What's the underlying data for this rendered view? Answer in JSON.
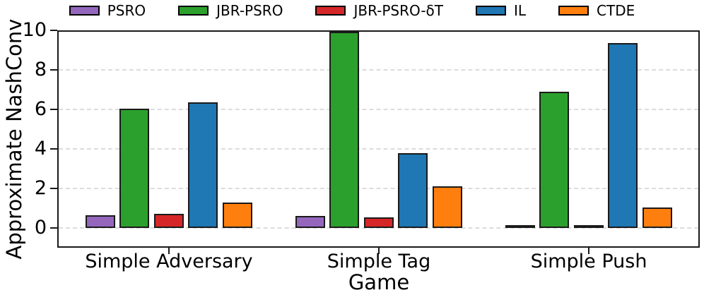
{
  "legend": {
    "items": [
      {
        "label": "PSRO",
        "color": "#9467bd"
      },
      {
        "label": "JBR-PSRO",
        "color": "#2ca02c"
      },
      {
        "label": "JBR-PSRO-δT",
        "color": "#d62728"
      },
      {
        "label": "IL",
        "color": "#1f77b4"
      },
      {
        "label": "CTDE",
        "color": "#ff7f0e"
      }
    ]
  },
  "chart_data": {
    "type": "bar",
    "title": "",
    "xlabel": "Game",
    "ylabel": "Approximate NashConv",
    "categories": [
      "Simple Adversary",
      "Simple Tag",
      "Simple Push"
    ],
    "series": [
      {
        "name": "PSRO",
        "color": "#9467bd",
        "values": [
          0.65,
          0.6,
          0.1
        ]
      },
      {
        "name": "JBR-PSRO",
        "color": "#2ca02c",
        "values": [
          6.05,
          10,
          6.9
        ]
      },
      {
        "name": "JBR-PSRO-δT",
        "color": "#d62728",
        "values": [
          0.72,
          0.52,
          0.16
        ]
      },
      {
        "name": "IL",
        "color": "#1f77b4",
        "values": [
          6.35,
          3.78,
          9.35
        ]
      },
      {
        "name": "CTDE",
        "color": "#ff7f0e",
        "values": [
          1.27,
          2.12,
          1.02
        ]
      }
    ],
    "yticks": [
      0,
      2,
      4,
      6,
      8,
      10
    ],
    "ylim": [
      -1,
      10
    ],
    "grid": "horizontal-dashed",
    "legend_position": "top",
    "note": "JBR-PSRO bar for Simple Tag is clipped at the axis top (value reaches 10)"
  },
  "style": {
    "bar_edge_color": "#1a1a1a",
    "spine_color": "#1a1a1a",
    "grid_color": "#dcdcdc",
    "background": "#ffffff"
  }
}
